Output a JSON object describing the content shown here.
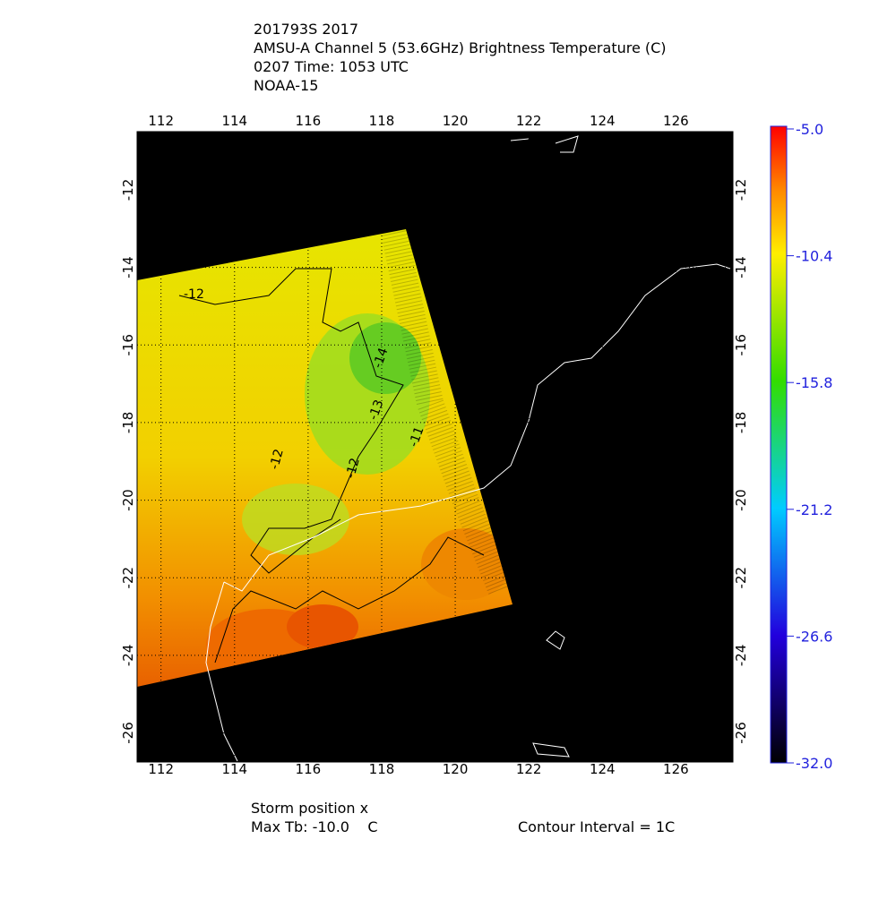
{
  "header": {
    "lines": [
      "201793S 2017",
      "AMSU-A Channel 5 (53.6GHz) Brightness Temperature (C)",
      "0207 Time: 1053 UTC",
      "NOAA-15"
    ]
  },
  "map": {
    "xlim": [
      111.35,
      127.55
    ],
    "ylim": [
      -26.75,
      -10.5
    ],
    "xticks": [
      112,
      114,
      116,
      118,
      120,
      122,
      124,
      126
    ],
    "yticks": [
      -12,
      -14,
      -16,
      -18,
      -20,
      -22,
      -24,
      -26
    ],
    "grid": true,
    "contour_labels": [
      "-12",
      "-14",
      "-13",
      "-11",
      "-12",
      "-12"
    ]
  },
  "colorbar": {
    "lim": [
      -5,
      -32
    ],
    "ticks": [
      {
        "value": -5,
        "label": "-5.0"
      },
      -10.4,
      -15.8,
      -21.2,
      -26.6,
      {
        "value": -32,
        "label": "-32.0"
      }
    ]
  },
  "footer": {
    "storm": "Storm position x",
    "max_tb": "Max Tb: -10.0    C",
    "interval": "Contour Interval = 1C"
  }
}
